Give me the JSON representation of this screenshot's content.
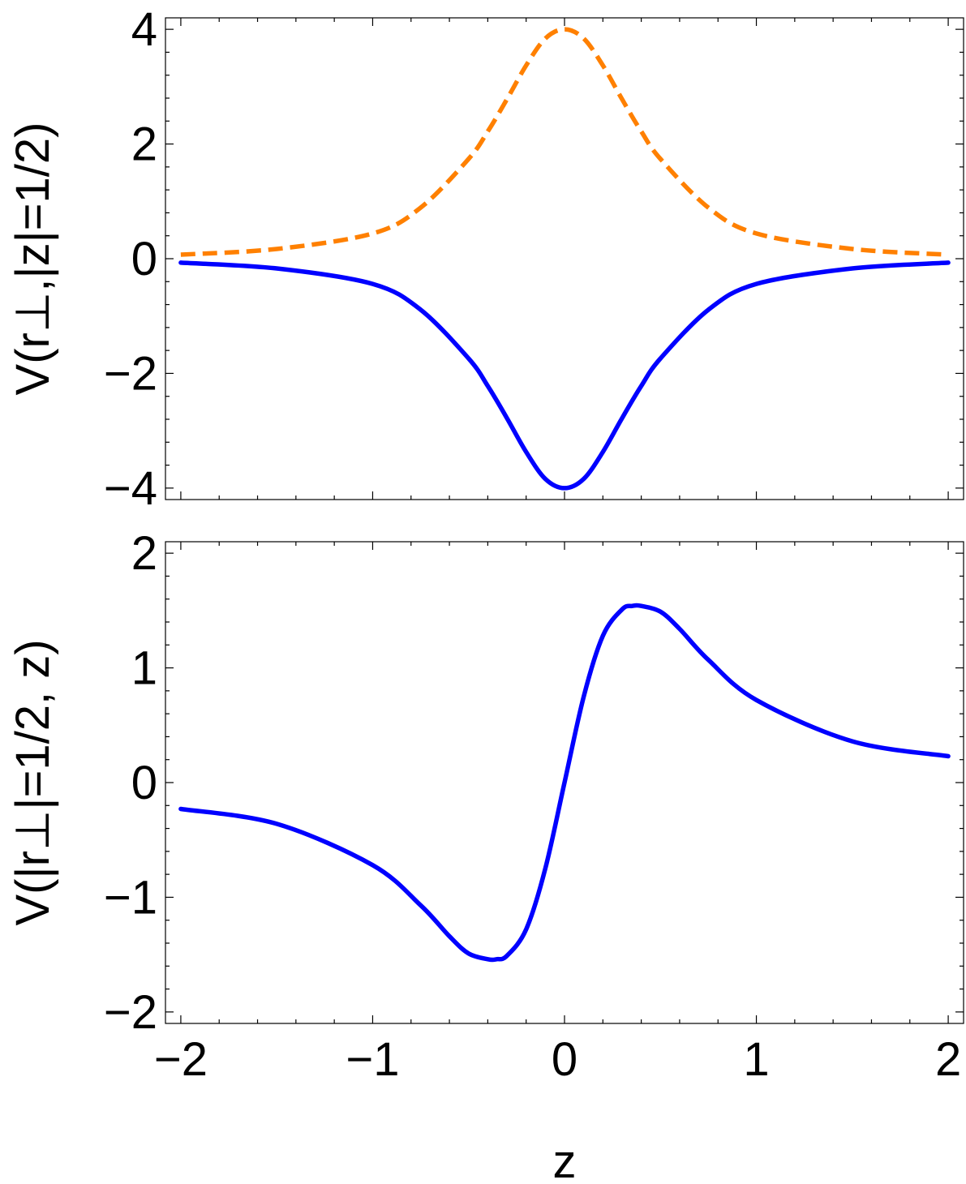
{
  "chart_data": [
    {
      "type": "line",
      "panel": "top",
      "title": "",
      "xlabel": "",
      "ylabel": "V(r⊥,|z|=1/2)",
      "xlim": [
        -2.08,
        2.08
      ],
      "ylim": [
        -4.2,
        4.2
      ],
      "x_ticks": [
        -2,
        -1,
        0,
        1,
        2
      ],
      "x_tick_labels_shown": false,
      "y_ticks": [
        4,
        2,
        0,
        -2,
        -4
      ],
      "y_tick_labels": [
        "4",
        "2",
        "0",
        "−2",
        "−4"
      ],
      "grid": false,
      "legend": "none",
      "series": [
        {
          "color": "#ff8000",
          "style": "dashed",
          "x": [
            -2.0,
            -1.5,
            -1.0,
            -0.75,
            -0.5,
            -0.4,
            -0.3,
            -0.2,
            -0.1,
            0.0,
            0.1,
            0.2,
            0.3,
            0.4,
            0.5,
            0.75,
            1.0,
            1.5,
            2.0
          ],
          "values": [
            0.07,
            0.17,
            0.44,
            0.89,
            1.74,
            2.22,
            2.78,
            3.37,
            3.84,
            4.0,
            3.84,
            3.37,
            2.78,
            2.22,
            1.74,
            0.89,
            0.44,
            0.17,
            0.07
          ]
        },
        {
          "color": "#0000ff",
          "style": "solid",
          "x": [
            -2.0,
            -1.5,
            -1.0,
            -0.75,
            -0.5,
            -0.4,
            -0.3,
            -0.2,
            -0.1,
            0.0,
            0.1,
            0.2,
            0.3,
            0.4,
            0.5,
            0.75,
            1.0,
            1.5,
            2.0
          ],
          "values": [
            -0.07,
            -0.17,
            -0.44,
            -0.89,
            -1.74,
            -2.22,
            -2.78,
            -3.37,
            -3.84,
            -4.0,
            -3.84,
            -3.37,
            -2.78,
            -2.22,
            -1.74,
            -0.89,
            -0.44,
            -0.17,
            -0.07
          ]
        }
      ]
    },
    {
      "type": "line",
      "panel": "bottom",
      "title": "",
      "xlabel": "z",
      "ylabel": "V(|r⊥|=1/2, z)",
      "xlim": [
        -2.08,
        2.08
      ],
      "ylim": [
        -2.1,
        2.1
      ],
      "x_ticks": [
        -2,
        -1,
        0,
        1,
        2
      ],
      "x_tick_labels": [
        "−2",
        "−1",
        "0",
        "1",
        "2"
      ],
      "y_ticks": [
        2,
        1,
        0,
        -1,
        -2
      ],
      "y_tick_labels": [
        "2",
        "1",
        "0",
        "−1",
        "−2"
      ],
      "grid": false,
      "legend": "none",
      "series": [
        {
          "color": "#0000ff",
          "style": "solid",
          "x": [
            -2.0,
            -1.5,
            -1.0,
            -0.75,
            -0.6,
            -0.5,
            -0.4,
            -0.354,
            -0.3,
            -0.2,
            -0.1,
            0.0,
            0.1,
            0.2,
            0.3,
            0.354,
            0.4,
            0.5,
            0.6,
            0.75,
            1.0,
            1.5,
            2.0
          ],
          "values": [
            -0.23,
            -0.36,
            -0.72,
            -1.07,
            -1.34,
            -1.49,
            -1.54,
            -1.54,
            -1.51,
            -1.28,
            -0.75,
            0.0,
            0.75,
            1.28,
            1.51,
            1.54,
            1.54,
            1.49,
            1.34,
            1.07,
            0.72,
            0.36,
            0.23
          ]
        }
      ]
    }
  ]
}
